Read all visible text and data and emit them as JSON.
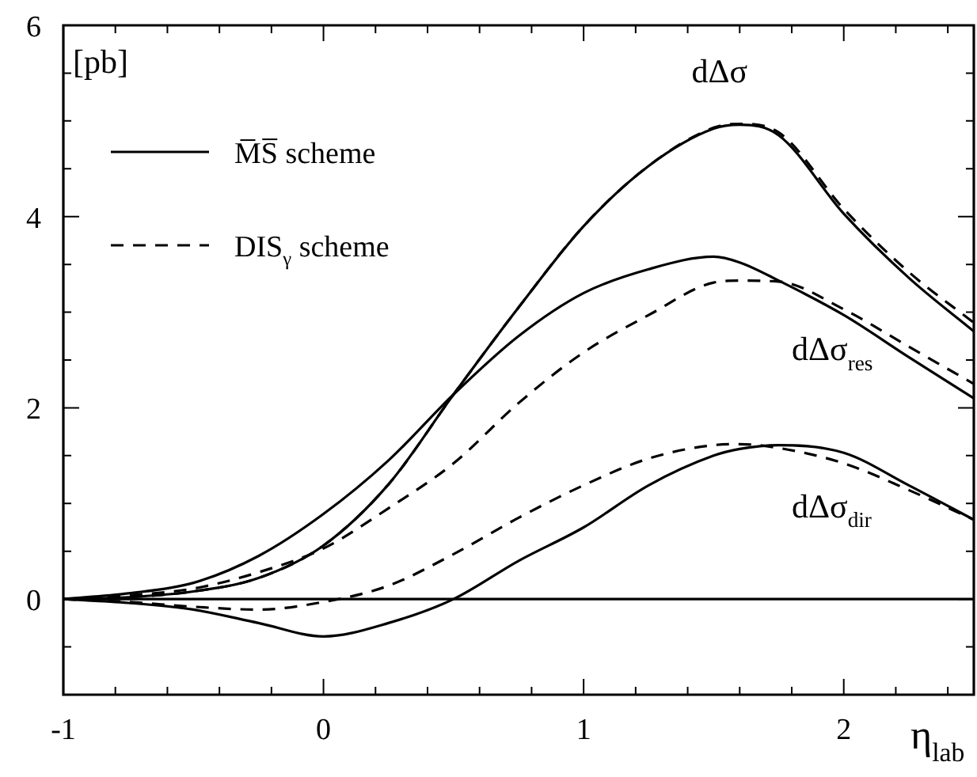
{
  "chart_data": {
    "type": "line",
    "xlabel": "η$_{lab}$",
    "ylabel": "[pb]",
    "xlim": [
      -1,
      2.5
    ],
    "ylim": [
      -1,
      6
    ],
    "xticks": [
      -1,
      {
        "value": -0.8,
        "label": null
      },
      {
        "value": -0.6,
        "label": null
      },
      {
        "value": -0.4,
        "label": null
      },
      {
        "value": -0.2,
        "label": null
      },
      0,
      {
        "value": 0.2,
        "label": null
      },
      {
        "value": 0.4,
        "label": null
      },
      {
        "value": 0.6,
        "label": null
      },
      {
        "value": 0.8,
        "label": null
      },
      1,
      {
        "value": 1.2,
        "label": null
      },
      {
        "value": 1.4,
        "label": null
      },
      {
        "value": 1.6,
        "label": null
      },
      {
        "value": 1.8,
        "label": null
      },
      2,
      {
        "value": 2.2,
        "label": null
      },
      {
        "value": 2.4,
        "label": null
      }
    ],
    "yticks": [
      {
        "value": -0.5,
        "label": null
      },
      0,
      {
        "value": 0.5,
        "label": null
      },
      {
        "value": 1,
        "label": null
      },
      {
        "value": 1.5,
        "label": null
      },
      2,
      {
        "value": 2.5,
        "label": null
      },
      {
        "value": 3,
        "label": null
      },
      {
        "value": 3.5,
        "label": null
      },
      4,
      {
        "value": 4.5,
        "label": null
      },
      {
        "value": 5,
        "label": null
      },
      {
        "value": 5.5,
        "label": null
      },
      6
    ],
    "x": [
      -1,
      -0.75,
      -0.5,
      -0.25,
      0,
      0.25,
      0.5,
      0.75,
      1,
      1.25,
      1.5,
      1.6,
      1.75,
      2,
      2.25,
      2.5
    ],
    "grid": false,
    "legend": "top left",
    "marker": "none",
    "series": [
      {
        "name": "M̅S̅ scheme",
        "color": "#000000",
        "line_style": "solid",
        "values": [
          0,
          0.02,
          0.08,
          0.22,
          0.56,
          1.2,
          2.14,
          3.05,
          3.9,
          4.53,
          4.92,
          4.96,
          4.85,
          4.03,
          3.36,
          2.8
        ]
      },
      {
        "color": "#000000",
        "line_style": "solid",
        "values": [
          0,
          0.06,
          0.17,
          0.45,
          0.89,
          1.45,
          2.14,
          2.75,
          3.2,
          3.45,
          3.58,
          3.52,
          3.33,
          2.97,
          2.53,
          2.1
        ]
      },
      {
        "color": "#000000",
        "line_style": "solid",
        "values": [
          0,
          -0.04,
          -0.11,
          -0.25,
          -0.39,
          -0.25,
          0,
          0.4,
          0.75,
          1.19,
          1.5,
          1.57,
          1.61,
          1.53,
          1.19,
          0.83
        ]
      },
      {
        "name": "DIS$_{γ}$ scheme",
        "color": "#000000",
        "line_style": "dashed",
        "values": [
          0,
          0.02,
          0.08,
          0.22,
          0.56,
          1.2,
          2.14,
          3.05,
          3.9,
          4.53,
          4.93,
          4.97,
          4.88,
          4.08,
          3.42,
          2.89
        ]
      },
      {
        "color": "#000000",
        "line_style": "dashed",
        "values": [
          0,
          0.04,
          0.11,
          0.28,
          0.53,
          0.95,
          1.42,
          2.05,
          2.58,
          2.97,
          3.31,
          3.33,
          3.32,
          3.03,
          2.64,
          2.25
        ]
      },
      {
        "color": "#000000",
        "line_style": "dashed",
        "values": [
          0,
          -0.03,
          -0.08,
          -0.11,
          -0.03,
          0.14,
          0.47,
          0.85,
          1.19,
          1.47,
          1.61,
          1.62,
          1.58,
          1.42,
          1.14,
          0.83
        ]
      }
    ],
    "ref_lines": [
      {
        "axis": "y",
        "value": 0,
        "color": "#000000",
        "line_style": "solid"
      }
    ],
    "annotations": [
      "dΔσ",
      "dΔσ$_{res}$",
      "dΔσ$_{dir}$"
    ]
  }
}
